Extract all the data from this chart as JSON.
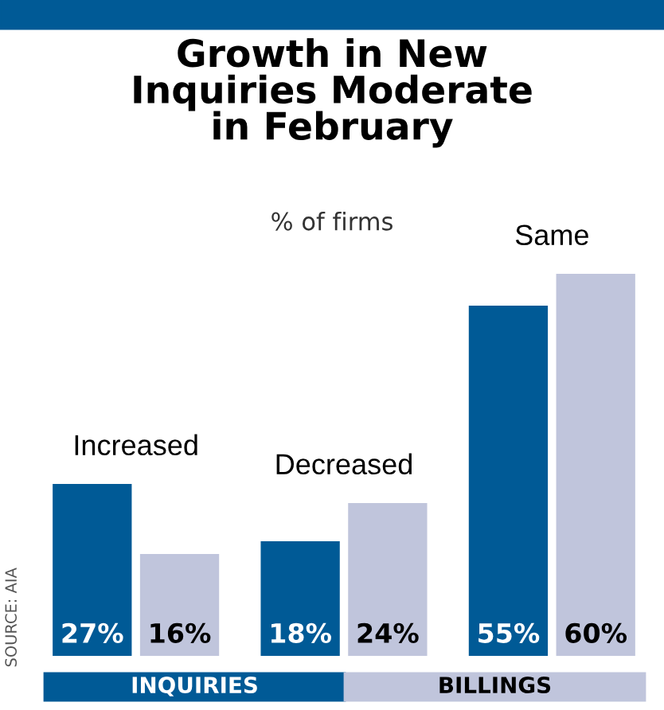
{
  "chart_data": {
    "type": "bar",
    "title": "Growth in New\nInquiries Moderate\nin February",
    "subtitle": "% of firms",
    "categories": [
      "Increased",
      "Decreased",
      "Same"
    ],
    "series": [
      {
        "name": "INQUIRIES",
        "color": "#005a96",
        "values": [
          27,
          18,
          55
        ],
        "value_labels": [
          "27%",
          "18%",
          "55%"
        ]
      },
      {
        "name": "BILLINGS",
        "color": "#c0c5dc",
        "values": [
          16,
          24,
          60
        ],
        "value_labels": [
          "16%",
          "24%",
          "60%"
        ]
      }
    ],
    "legend": "bottom",
    "annotations": [
      "SOURCE: AIA"
    ]
  }
}
